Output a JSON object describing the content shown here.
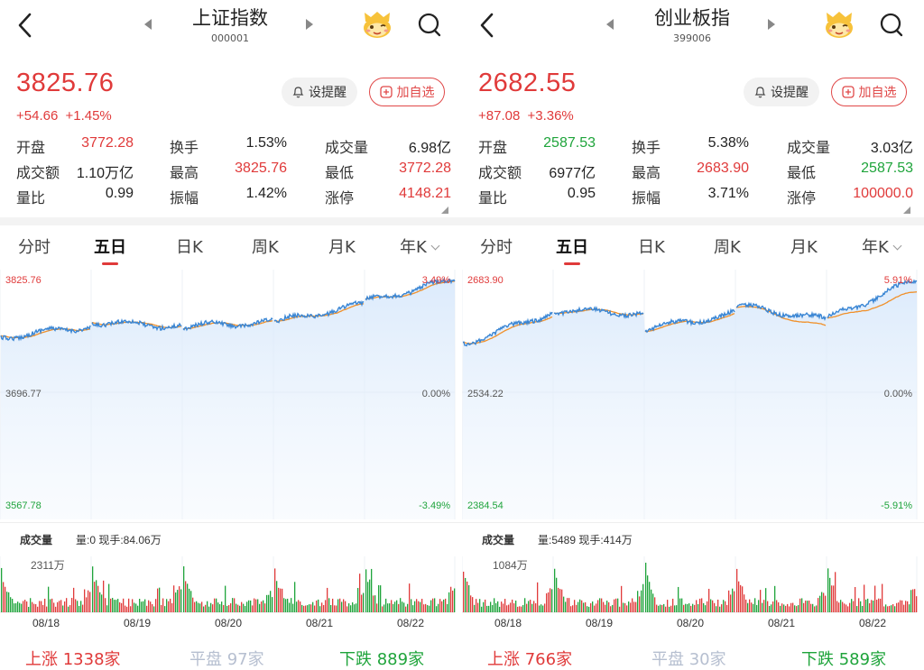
{
  "panels": [
    {
      "id": "sh",
      "header": {
        "title": "上证指数",
        "code": "000001"
      },
      "quote": {
        "price": "3825.76",
        "change": "+54.66",
        "change_pct": "+1.45%"
      },
      "actions": {
        "alert_label": "设提醒",
        "fav_label": "加自选"
      },
      "stats": [
        [
          {
            "label": "开盘",
            "value": "3772.28",
            "color": "red"
          },
          {
            "label": "换手",
            "value": "1.53%",
            "color": "dark"
          },
          {
            "label": "成交量",
            "value": "6.98亿",
            "color": "dark"
          }
        ],
        [
          {
            "label": "成交额",
            "value": "1.10万亿",
            "color": "dark"
          },
          {
            "label": "最高",
            "value": "3825.76",
            "color": "red"
          },
          {
            "label": "最低",
            "value": "3772.28",
            "color": "red"
          }
        ],
        [
          {
            "label": "量比",
            "value": "0.99",
            "color": "dark"
          },
          {
            "label": "振幅",
            "value": "1.42%",
            "color": "dark"
          },
          {
            "label": "涨停",
            "value": "4148.21",
            "color": "red"
          }
        ]
      ],
      "tabs": [
        "分时",
        "五日",
        "日K",
        "周K",
        "月K",
        "年K"
      ],
      "active_tab": 1,
      "chart": {
        "high": "3825.76",
        "mid": "3696.77",
        "low": "3567.78",
        "pct_high": "3.49%",
        "pct_mid": "0.00%",
        "pct_low": "-3.49%"
      },
      "volume": {
        "title": "成交量",
        "detail": "量:0 现手:84.06万",
        "max": "2311万"
      },
      "dates": [
        "08/18",
        "08/19",
        "08/20",
        "08/21",
        "08/22"
      ],
      "breadth": {
        "up_label": "上涨",
        "up": "1338家",
        "flat_label": "平盘",
        "flat": "97家",
        "down_label": "下跌",
        "down": "889家"
      }
    },
    {
      "id": "cyb",
      "header": {
        "title": "创业板指",
        "code": "399006"
      },
      "quote": {
        "price": "2682.55",
        "change": "+87.08",
        "change_pct": "+3.36%"
      },
      "actions": {
        "alert_label": "设提醒",
        "fav_label": "加自选"
      },
      "stats": [
        [
          {
            "label": "开盘",
            "value": "2587.53",
            "color": "green"
          },
          {
            "label": "换手",
            "value": "5.38%",
            "color": "dark"
          },
          {
            "label": "成交量",
            "value": "3.03亿",
            "color": "dark"
          }
        ],
        [
          {
            "label": "成交额",
            "value": "6977亿",
            "color": "dark"
          },
          {
            "label": "最高",
            "value": "2683.90",
            "color": "red"
          },
          {
            "label": "最低",
            "value": "2587.53",
            "color": "green"
          }
        ],
        [
          {
            "label": "量比",
            "value": "0.95",
            "color": "dark"
          },
          {
            "label": "振幅",
            "value": "3.71%",
            "color": "dark"
          },
          {
            "label": "涨停",
            "value": "100000.0",
            "color": "red"
          }
        ]
      ],
      "tabs": [
        "分时",
        "五日",
        "日K",
        "周K",
        "月K",
        "年K"
      ],
      "active_tab": 1,
      "chart": {
        "high": "2683.90",
        "mid": "2534.22",
        "low": "2384.54",
        "pct_high": "5.91%",
        "pct_mid": "0.00%",
        "pct_low": "-5.91%"
      },
      "volume": {
        "title": "成交量",
        "detail": "量:5489 现手:414万",
        "max": "1084万"
      },
      "dates": [
        "08/18",
        "08/19",
        "08/20",
        "08/21",
        "08/22"
      ],
      "breadth": {
        "up_label": "上涨",
        "up": "766家",
        "flat_label": "平盘",
        "flat": "30家",
        "down_label": "下跌",
        "down": "589家"
      }
    }
  ],
  "colors": {
    "up": "#e03a3a",
    "down": "#1fa43b",
    "price_line": "#3a86d4",
    "avg_line": "#f0902a",
    "flat": "#b6bfd0"
  }
}
